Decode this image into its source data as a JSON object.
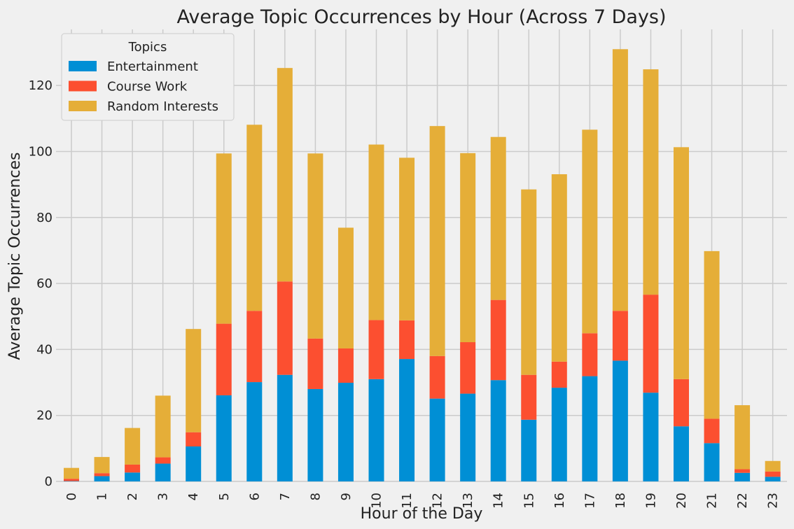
{
  "chart_data": {
    "type": "bar",
    "stacked": true,
    "title": "Average Topic Occurrences by Hour (Across 7 Days)",
    "xlabel": "Hour of the Day",
    "ylabel": "Average Topic Occurrences",
    "categories": [
      "0",
      "1",
      "2",
      "3",
      "4",
      "5",
      "6",
      "7",
      "8",
      "9",
      "10",
      "11",
      "12",
      "13",
      "14",
      "15",
      "16",
      "17",
      "18",
      "19",
      "20",
      "21",
      "22",
      "23"
    ],
    "ylim": [
      0,
      137
    ],
    "yticks": [
      0,
      20,
      40,
      60,
      80,
      100,
      120
    ],
    "grid": true,
    "legend": {
      "title": "Topics",
      "placement": "top-left"
    },
    "series": [
      {
        "name": "Entertainment",
        "color": "#008fd5",
        "values": [
          0.1,
          1.6,
          2.7,
          5.4,
          10.6,
          26.1,
          30.1,
          32.3,
          28.0,
          29.9,
          31.0,
          37.1,
          25.1,
          26.6,
          30.7,
          18.7,
          28.4,
          31.9,
          36.6,
          26.9,
          16.7,
          11.6,
          2.6,
          1.4
        ]
      },
      {
        "name": "Course Work",
        "color": "#fc4f30",
        "values": [
          0.7,
          0.9,
          2.4,
          1.9,
          4.3,
          21.7,
          21.6,
          28.3,
          15.3,
          10.4,
          17.9,
          11.7,
          12.9,
          15.6,
          24.3,
          13.6,
          7.9,
          13.0,
          15.1,
          29.7,
          14.3,
          7.4,
          1.1,
          1.6
        ]
      },
      {
        "name": "Random Interests",
        "color": "#e5ae38",
        "values": [
          3.3,
          4.9,
          11.1,
          18.7,
          31.3,
          51.6,
          56.4,
          64.7,
          56.1,
          36.6,
          53.2,
          49.3,
          69.7,
          57.3,
          49.4,
          56.2,
          56.8,
          61.7,
          79.3,
          68.3,
          70.3,
          50.8,
          19.4,
          3.2
        ]
      }
    ]
  }
}
